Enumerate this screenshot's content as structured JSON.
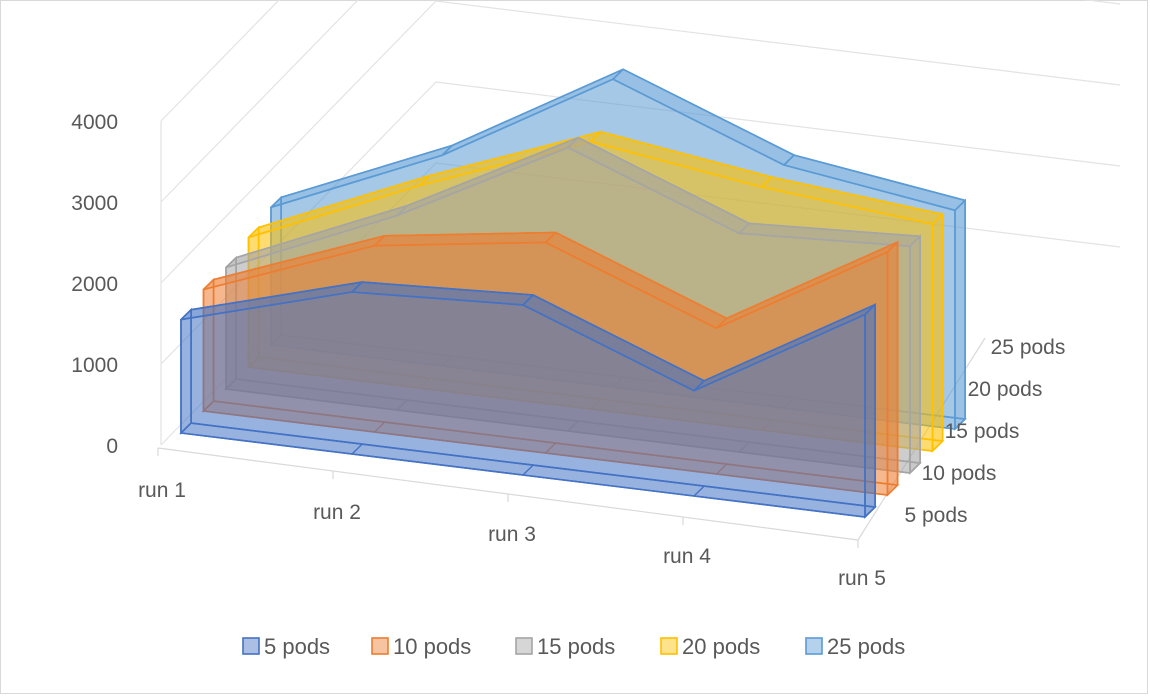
{
  "chart_data": {
    "type": "area",
    "subtype": "3d-area",
    "title": "",
    "xlabel": "",
    "ylabel": "",
    "categories": [
      "run 1",
      "run 2",
      "run 3",
      "run 4",
      "run 5"
    ],
    "yticks": [
      "0",
      "1000",
      "2000",
      "3000",
      "4000"
    ],
    "ylim": [
      0,
      4000
    ],
    "grid": true,
    "legend": "bottom",
    "series": [
      {
        "name": "5 pods",
        "values": [
          1400,
          2000,
          2100,
          1300,
          2500
        ],
        "fill": "#4472C4",
        "stroke": "#4472C4"
      },
      {
        "name": "10 pods",
        "values": [
          1500,
          2300,
          2600,
          1800,
          3000
        ],
        "fill": "#ED7D31",
        "stroke": "#ED7D31"
      },
      {
        "name": "15 pods",
        "values": [
          1500,
          2400,
          3500,
          2700,
          2800
        ],
        "fill": "#A5A5A5",
        "stroke": "#A5A5A5"
      },
      {
        "name": "20 pods",
        "values": [
          1600,
          2500,
          3300,
          3000,
          2800
        ],
        "fill": "#FFC000",
        "stroke": "#FFC000"
      },
      {
        "name": "25 pods",
        "values": [
          1700,
          2600,
          3800,
          3000,
          2700
        ],
        "fill": "#5B9BD5",
        "stroke": "#5B9BD5"
      }
    ]
  }
}
